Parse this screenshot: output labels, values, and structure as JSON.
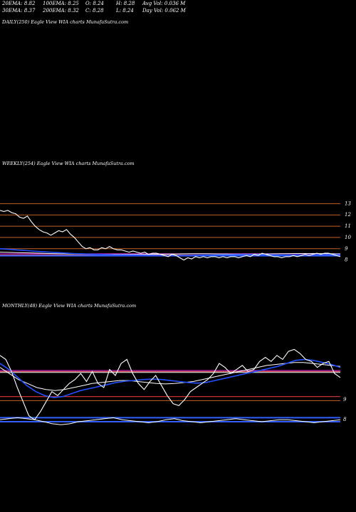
{
  "header": {
    "row1": [
      "20EMA: 8.82",
      "100EMA: 8.25",
      "O: 8.24",
      "H: 8.28",
      "Avg Vol: 0.036  M"
    ],
    "row2": [
      "30EMA: 8.37",
      "200EMA: 8.32",
      "C: 8.28",
      "L: 8.24",
      "Day Vol: 0.062  M"
    ]
  },
  "panels": {
    "daily_title": "DAILY(250) Eagle   View  WIA charts MunafaSutra.com",
    "weekly_title": "WEEKLY(254) Eagle   View  WIA charts MunafaSutra.com",
    "monthly_title": "MONTHLY(48) Eagle   View  WIA charts MunafaSutra.com"
  },
  "chart_data": [
    {
      "type": "line",
      "name": "weekly",
      "ylim": [
        7.6,
        13.4
      ],
      "yticks": [
        13,
        12,
        11,
        10,
        9,
        8
      ],
      "hlines": [
        {
          "value": 13.0,
          "color": "#c0622a"
        },
        {
          "value": 12.0,
          "color": "#c0622a"
        },
        {
          "value": 11.0,
          "color": "#c0622a"
        },
        {
          "value": 10.0,
          "color": "#c0622a"
        },
        {
          "value": 9.0,
          "color": "#c0622a"
        },
        {
          "value": 8.55,
          "color": "#e020e0"
        },
        {
          "value": 8.45,
          "color": "#ff6060"
        },
        {
          "value": 8.38,
          "color": "#3060ff"
        }
      ],
      "price": [
        12.4,
        12.3,
        12.4,
        12.2,
        12.1,
        11.8,
        11.7,
        11.9,
        11.4,
        11.0,
        10.7,
        10.5,
        10.4,
        10.2,
        10.4,
        10.6,
        10.5,
        10.7,
        10.3,
        10.0,
        9.6,
        9.2,
        9.0,
        9.1,
        8.9,
        8.9,
        9.1,
        9.0,
        9.2,
        9.0,
        8.9,
        8.9,
        8.8,
        8.7,
        8.8,
        8.7,
        8.6,
        8.7,
        8.5,
        8.6,
        8.6,
        8.5,
        8.4,
        8.3,
        8.5,
        8.4,
        8.2,
        8.0,
        8.2,
        8.1,
        8.3,
        8.2,
        8.3,
        8.2,
        8.3,
        8.3,
        8.2,
        8.3,
        8.2,
        8.3,
        8.3,
        8.2,
        8.3,
        8.4,
        8.3,
        8.5,
        8.4,
        8.6,
        8.5,
        8.4,
        8.3,
        8.3,
        8.2,
        8.3,
        8.3,
        8.4,
        8.3,
        8.4,
        8.5,
        8.4,
        8.5,
        8.6,
        8.5,
        8.6,
        8.6,
        8.5,
        8.4,
        8.3
      ],
      "ema_blue": [
        9.0,
        8.95,
        8.9,
        8.85,
        8.8,
        8.75,
        8.7,
        8.66,
        8.62,
        8.58,
        8.55,
        8.52,
        8.5,
        8.48,
        8.46,
        8.45,
        8.44,
        8.43,
        8.42,
        8.41,
        8.4,
        8.4,
        8.4,
        8.41,
        8.42,
        8.43,
        8.44,
        8.45,
        8.46,
        8.47,
        8.48,
        8.48,
        8.47,
        8.46,
        8.45,
        8.44,
        8.44,
        8.45,
        8.46,
        8.47,
        8.48,
        8.48,
        8.47
      ],
      "ema_white": [
        8.7,
        8.68,
        8.66,
        8.64,
        8.62,
        8.6,
        8.58,
        8.56,
        8.55,
        8.54,
        8.53,
        8.52,
        8.51,
        8.5,
        8.5,
        8.5,
        8.5,
        8.5,
        8.5,
        8.51,
        8.52,
        8.53,
        8.54,
        8.55,
        8.56,
        8.56,
        8.55,
        8.54,
        8.53,
        8.52,
        8.52,
        8.52,
        8.53,
        8.54,
        8.55,
        8.56,
        8.57,
        8.58,
        8.58,
        8.57,
        8.56,
        8.55,
        8.54
      ]
    },
    {
      "type": "line",
      "name": "monthly",
      "ylim": [
        7.3,
        11.9
      ],
      "yticks": [
        9,
        8
      ],
      "hlines": [
        {
          "value": 10.45,
          "color": "#e020e0"
        },
        {
          "value": 10.4,
          "color": "#ff6060"
        },
        {
          "value": 10.35,
          "color": "#ffffff"
        },
        {
          "value": 9.15,
          "color": "#ff4040"
        },
        {
          "value": 8.95,
          "color": "#c0622a"
        },
        {
          "value": 8.1,
          "color": "#3060ff"
        },
        {
          "value": 7.9,
          "color": "#3060ff"
        }
      ],
      "price": [
        11.2,
        11.0,
        10.4,
        9.6,
        8.9,
        8.2,
        8.0,
        8.4,
        8.9,
        9.4,
        9.2,
        9.5,
        9.8,
        10.0,
        10.3,
        9.9,
        10.4,
        9.8,
        9.6,
        10.5,
        10.2,
        10.8,
        11.0,
        10.3,
        9.8,
        9.5,
        9.9,
        10.2,
        9.7,
        9.2,
        8.8,
        8.7,
        9.0,
        9.4,
        9.6,
        9.8,
        10.0,
        10.3,
        10.8,
        10.6,
        10.3,
        10.5,
        10.7,
        10.4,
        10.5,
        10.9,
        11.1,
        10.9,
        11.2,
        11.0,
        11.4,
        11.5,
        11.3,
        11.0,
        10.9,
        10.6,
        10.8,
        10.9,
        10.3,
        10.1
      ],
      "ema_blue": [
        10.8,
        10.5,
        10.1,
        9.7,
        9.4,
        9.2,
        9.1,
        9.15,
        9.3,
        9.45,
        9.55,
        9.65,
        9.75,
        9.85,
        9.92,
        9.95,
        10.0,
        10.02,
        10.0,
        9.95,
        9.9,
        9.85,
        9.82,
        9.85,
        9.95,
        10.05,
        10.15,
        10.25,
        10.35,
        10.45,
        10.55,
        10.65,
        10.8,
        10.95,
        11.0,
        10.95,
        10.85,
        10.75,
        10.6
      ],
      "ema_white": [
        10.6,
        10.3,
        10.0,
        9.8,
        9.6,
        9.5,
        9.45,
        9.5,
        9.6,
        9.7,
        9.8,
        9.85,
        9.9,
        9.95,
        9.95,
        9.9,
        9.85,
        9.8,
        9.78,
        9.8,
        9.85,
        9.9,
        10.0,
        10.1,
        10.2,
        10.3,
        10.4,
        10.5,
        10.6,
        10.7,
        10.75,
        10.8,
        10.85,
        10.85,
        10.8,
        10.75,
        10.7,
        10.65
      ],
      "lower": [
        8.0,
        8.05,
        8.1,
        8.05,
        8.0,
        7.9,
        7.8,
        7.75,
        7.8,
        7.9,
        7.95,
        8.0,
        8.05,
        8.1,
        8.0,
        7.95,
        7.9,
        7.85,
        7.9,
        8.0,
        8.05,
        7.95,
        7.9,
        7.85,
        7.9,
        7.95,
        8.0,
        8.05,
        8.0,
        7.95,
        7.9,
        7.95,
        8.0,
        8.0,
        7.95,
        7.9,
        7.85,
        7.9,
        7.95,
        8.0
      ]
    }
  ]
}
